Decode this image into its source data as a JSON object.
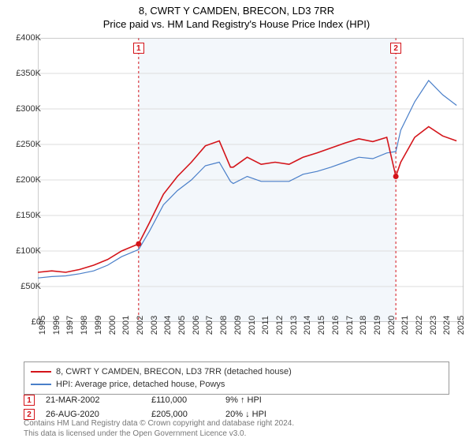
{
  "title": "8, CWRT Y CAMDEN, BRECON, LD3 7RR",
  "subtitle": "Price paid vs. HM Land Registry's House Price Index (HPI)",
  "chart": {
    "type": "line",
    "background_color": "#ffffff",
    "plot_shade_color": "#f3f7fb",
    "grid_color": "#dddddd",
    "xlim": [
      1995,
      2025.5
    ],
    "ylim": [
      0,
      400000
    ],
    "ytick_step": 50000,
    "yticks": [
      "£0",
      "£50K",
      "£100K",
      "£150K",
      "£200K",
      "£250K",
      "£300K",
      "£350K",
      "£400K"
    ],
    "xticks": [
      1995,
      1996,
      1997,
      1998,
      1999,
      2000,
      2001,
      2002,
      2003,
      2004,
      2005,
      2006,
      2007,
      2008,
      2009,
      2010,
      2011,
      2012,
      2013,
      2014,
      2015,
      2016,
      2017,
      2018,
      2019,
      2020,
      2021,
      2022,
      2023,
      2024,
      2025
    ],
    "shade_start_year": 2002.22,
    "shade_end_year": 2020.65,
    "series": [
      {
        "name": "property",
        "label": "8, CWRT Y CAMDEN, BRECON, LD3 7RR (detached house)",
        "color": "#d4141a",
        "width": 1.6,
        "points": [
          [
            1995,
            70
          ],
          [
            1996,
            72
          ],
          [
            1997,
            70
          ],
          [
            1998,
            74
          ],
          [
            1999,
            80
          ],
          [
            2000,
            88
          ],
          [
            2001,
            100
          ],
          [
            2002.22,
            110
          ],
          [
            2003,
            140
          ],
          [
            2004,
            180
          ],
          [
            2005,
            205
          ],
          [
            2006,
            225
          ],
          [
            2007,
            248
          ],
          [
            2008,
            255
          ],
          [
            2008.8,
            218
          ],
          [
            2009,
            218
          ],
          [
            2010,
            232
          ],
          [
            2011,
            222
          ],
          [
            2012,
            225
          ],
          [
            2013,
            222
          ],
          [
            2014,
            232
          ],
          [
            2015,
            238
          ],
          [
            2016,
            245
          ],
          [
            2017,
            252
          ],
          [
            2018,
            258
          ],
          [
            2019,
            254
          ],
          [
            2020,
            260
          ],
          [
            2020.65,
            205
          ],
          [
            2021,
            225
          ],
          [
            2022,
            260
          ],
          [
            2023,
            275
          ],
          [
            2024,
            262
          ],
          [
            2025,
            255
          ]
        ]
      },
      {
        "name": "hpi",
        "label": "HPI: Average price, detached house, Powys",
        "color": "#4a7fc9",
        "width": 1.2,
        "points": [
          [
            1995,
            62
          ],
          [
            1996,
            64
          ],
          [
            1997,
            65
          ],
          [
            1998,
            68
          ],
          [
            1999,
            72
          ],
          [
            2000,
            80
          ],
          [
            2001,
            92
          ],
          [
            2002.22,
            102
          ],
          [
            2003,
            128
          ],
          [
            2004,
            165
          ],
          [
            2005,
            185
          ],
          [
            2006,
            200
          ],
          [
            2007,
            220
          ],
          [
            2008,
            225
          ],
          [
            2008.8,
            198
          ],
          [
            2009,
            195
          ],
          [
            2010,
            205
          ],
          [
            2011,
            198
          ],
          [
            2012,
            198
          ],
          [
            2013,
            198
          ],
          [
            2014,
            208
          ],
          [
            2015,
            212
          ],
          [
            2016,
            218
          ],
          [
            2017,
            225
          ],
          [
            2018,
            232
          ],
          [
            2019,
            230
          ],
          [
            2020,
            238
          ],
          [
            2020.65,
            240
          ],
          [
            2021,
            270
          ],
          [
            2022,
            310
          ],
          [
            2023,
            340
          ],
          [
            2024,
            320
          ],
          [
            2025,
            305
          ]
        ]
      }
    ],
    "markers": [
      {
        "n": "1",
        "year": 2002.22,
        "value": 110
      },
      {
        "n": "2",
        "year": 2020.65,
        "value": 205
      }
    ],
    "marker_dot_color": "#d4141a",
    "label_fontsize": 11
  },
  "legend": {
    "rows": [
      {
        "color": "#d4141a",
        "label": "8, CWRT Y CAMDEN, BRECON, LD3 7RR (detached house)"
      },
      {
        "color": "#4a7fc9",
        "label": "HPI: Average price, detached house, Powys"
      }
    ]
  },
  "transactions": [
    {
      "n": "1",
      "date": "21-MAR-2002",
      "price": "£110,000",
      "pct": "9% ↑ HPI"
    },
    {
      "n": "2",
      "date": "26-AUG-2020",
      "price": "£205,000",
      "pct": "20% ↓ HPI"
    }
  ],
  "footer": {
    "line1": "Contains HM Land Registry data © Crown copyright and database right 2024.",
    "line2": "This data is licensed under the Open Government Licence v3.0."
  }
}
